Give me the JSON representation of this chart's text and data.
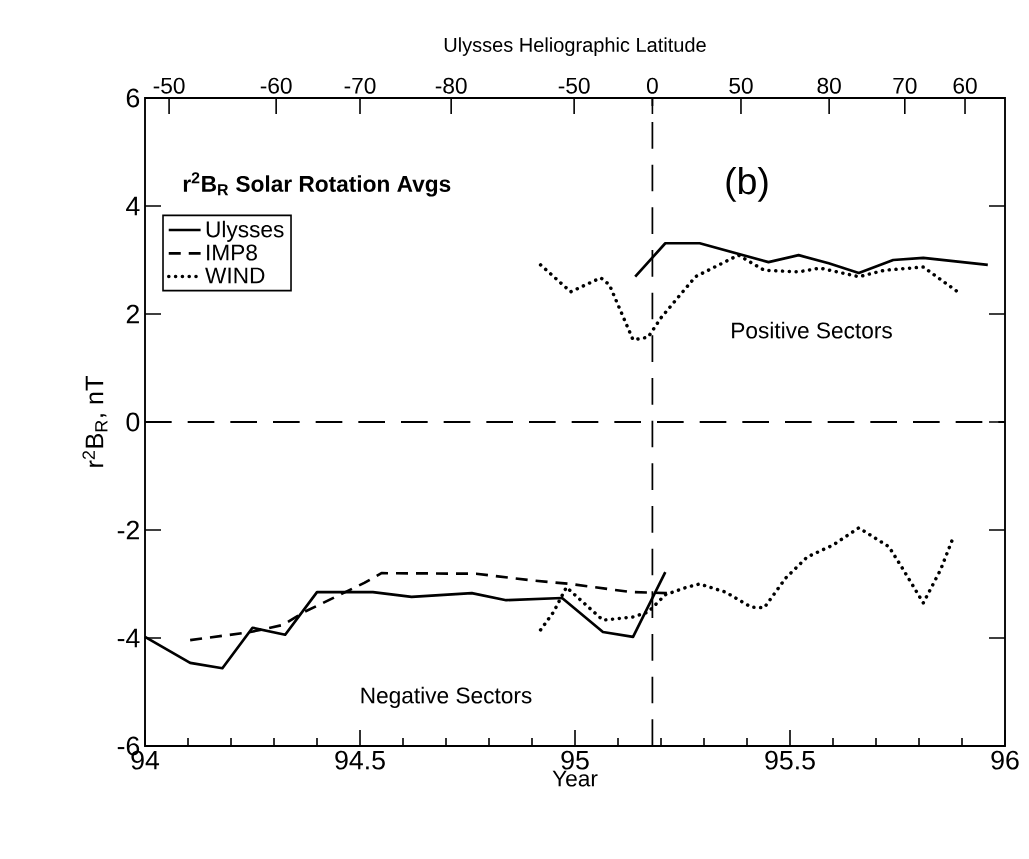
{
  "chart_data": {
    "type": "line",
    "xlabel": "Year",
    "ylabel": "r$^{2}$B$_{R}$, nT",
    "x2label": "Ulysses Heliographic Latitude",
    "xlim": [
      94,
      96
    ],
    "xticks": [
      94,
      94.5,
      95,
      95.5,
      96
    ],
    "ylim": [
      -6,
      6
    ],
    "yticks": [
      -6,
      -4,
      -2,
      0,
      2,
      4,
      6
    ],
    "legend": "top left",
    "marker": "none",
    "annotations": [
      "r$^{2}$B$_{R}$ Solar Rotation Avgs",
      "(b)",
      "Positive Sectors",
      "Negative Sectors",
      "-50",
      "-60",
      "-70",
      "-80",
      "-50",
      "0",
      "50",
      "80",
      "70",
      "60"
    ],
    "ref_lines": [
      {
        "axis": "y",
        "value": 0,
        "line_style": "dashed"
      },
      {
        "axis": "x",
        "value": 95.18,
        "line_style": "dashed"
      }
    ],
    "series": [
      {
        "name": "Ulysses",
        "color": "#000000",
        "line_style": "solid",
        "x": [
          94.0,
          94.105,
          94.18,
          94.25,
          94.326,
          94.4,
          94.53,
          94.62,
          94.76,
          94.84,
          94.97,
          95.065,
          95.135,
          95.21
        ],
        "values": [
          -3.98,
          -4.46,
          -4.56,
          -3.81,
          -3.94,
          -3.15,
          -3.15,
          -3.24,
          -3.17,
          -3.3,
          -3.26,
          -3.89,
          -3.98,
          -2.78
        ]
      },
      {
        "name": "IMP8",
        "color": "#000000",
        "line_style": "dashed",
        "x": [
          94.105,
          94.245,
          94.32,
          94.37,
          94.51,
          94.55,
          94.77,
          94.895,
          94.99,
          95.13,
          95.22
        ],
        "values": [
          -4.04,
          -3.89,
          -3.76,
          -3.52,
          -2.98,
          -2.8,
          -2.81,
          -2.93,
          -3.0,
          -3.15,
          -3.17
        ]
      },
      {
        "name": "WIND",
        "color": "#000000",
        "line_style": "dotted",
        "x": [
          94.92,
          94.95,
          94.98,
          95.065,
          95.135,
          95.17,
          95.21,
          95.26,
          95.29,
          95.35,
          95.41,
          95.44,
          95.49,
          95.54,
          95.6,
          95.66,
          95.73,
          95.76,
          95.81,
          95.85,
          95.88
        ],
        "values": [
          -3.85,
          -3.52,
          -3.06,
          -3.67,
          -3.61,
          -3.52,
          -3.2,
          -3.06,
          -3.0,
          -3.15,
          -3.43,
          -3.44,
          -2.89,
          -2.5,
          -2.28,
          -1.96,
          -2.31,
          -2.69,
          -3.35,
          -2.74,
          -2.13
        ]
      },
      {
        "color": "#000000",
        "line_style": "solid",
        "x": [
          95.14,
          95.21,
          95.29,
          95.45,
          95.52,
          95.59,
          95.66,
          95.74,
          95.81,
          95.96
        ],
        "values": [
          2.69,
          3.31,
          3.31,
          2.96,
          3.09,
          2.94,
          2.76,
          3.0,
          3.04,
          2.91
        ]
      },
      {
        "color": "#000000",
        "line_style": "dotted",
        "x": [
          94.92,
          94.99,
          95.06,
          95.08,
          95.135,
          95.17,
          95.2,
          95.28,
          95.38,
          95.44,
          95.52,
          95.57,
          95.66,
          95.72,
          95.81,
          95.89
        ],
        "values": [
          2.91,
          2.41,
          2.67,
          2.54,
          1.52,
          1.57,
          1.93,
          2.69,
          3.09,
          2.81,
          2.78,
          2.85,
          2.69,
          2.81,
          2.87,
          2.41
        ]
      }
    ]
  }
}
